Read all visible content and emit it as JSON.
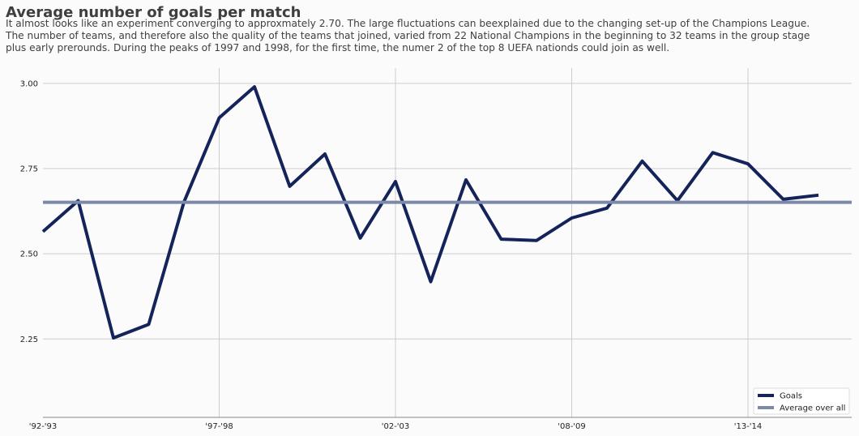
{
  "chart_data": {
    "type": "line",
    "title": "Average number of goals per match",
    "subtitle_lines": [
      "It almost looks like an experiment converging to approxmately 2.70. The large fluctuations can beexplained due to the changing set-up of the Champions League.",
      "The number of teams, and therefore also the quality of the teams that joined, varied from 22 National Champions in the beginning to 32 teams in the group stage",
      "plus early prerounds. During the peaks of 1997 and 1998, for the first time, the numer 2 of the top 8 UEFA nationds could join as well."
    ],
    "xlabel": "",
    "ylabel": "",
    "x_tick_labels": [
      "'92-'93",
      "'97-'98",
      "'02-'03",
      "'08-'09",
      "'13-'14"
    ],
    "x_tick_positions": [
      0,
      5,
      10,
      15,
      20
    ],
    "y_ticks": [
      2.25,
      2.5,
      2.75,
      3.0
    ],
    "y_tick_labels": [
      "2.25",
      "2.50",
      "2.75",
      "3.00"
    ],
    "xlim": [
      0,
      23
    ],
    "ylim": [
      2.02,
      3.045
    ],
    "grid": true,
    "legend_position": "bottom-right",
    "series": [
      {
        "name": "Goals",
        "color": "#14245a",
        "x": [
          0,
          1,
          2,
          3,
          4,
          5,
          6,
          7,
          8,
          9,
          10,
          11,
          12,
          13,
          14,
          15,
          16,
          17,
          18,
          19,
          20,
          21,
          22
        ],
        "values": [
          2.565,
          2.656,
          2.253,
          2.293,
          2.652,
          2.899,
          2.99,
          2.698,
          2.793,
          2.546,
          2.712,
          2.418,
          2.717,
          2.543,
          2.539,
          2.605,
          2.634,
          2.772,
          2.656,
          2.797,
          2.764,
          2.66,
          2.672
        ]
      },
      {
        "name": "Average over all",
        "color": "#7c89a8",
        "constant": 2.651
      }
    ]
  }
}
